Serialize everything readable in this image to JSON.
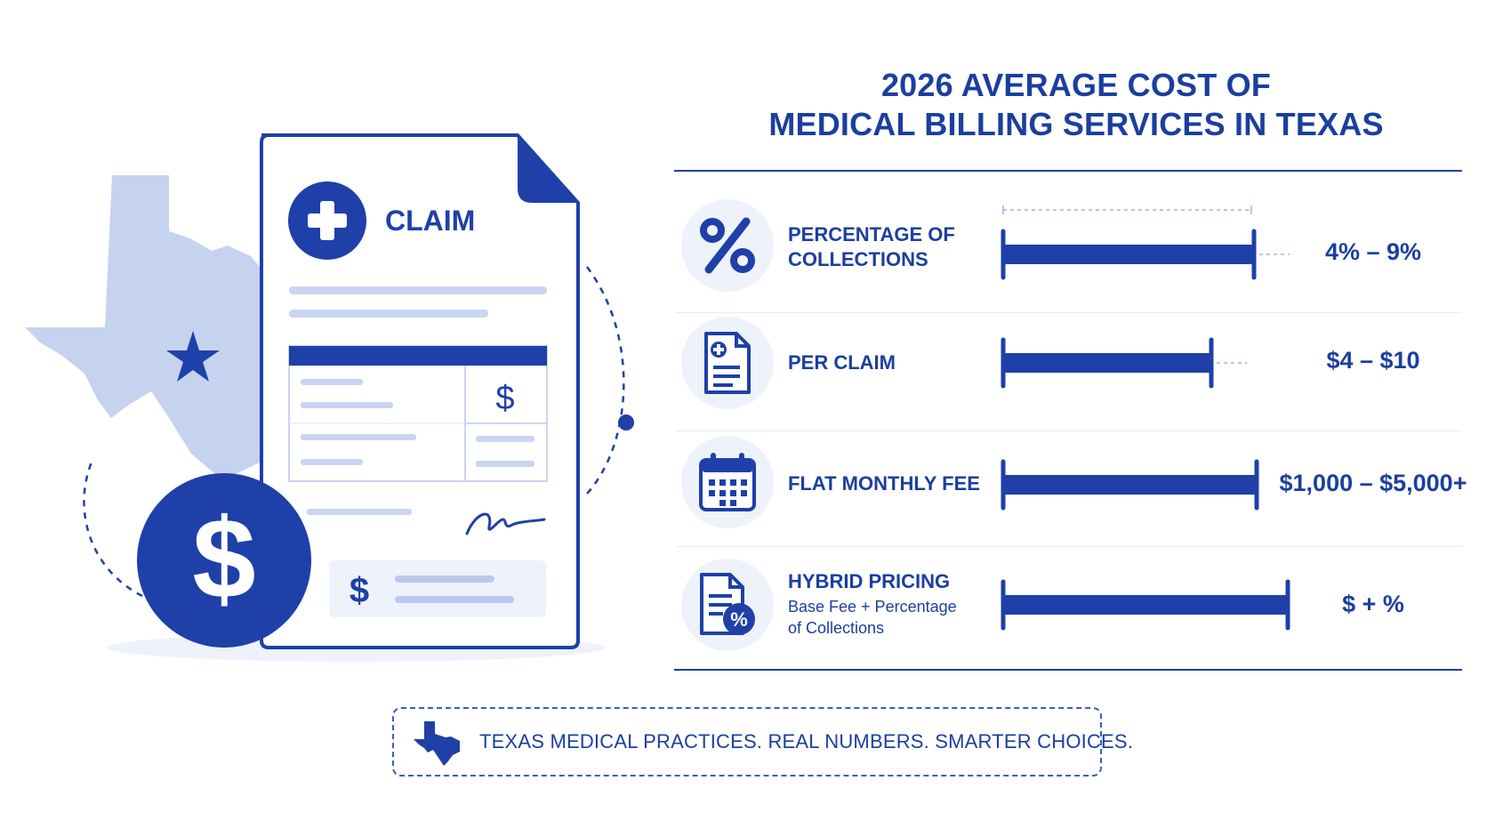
{
  "illustration": {
    "claim_label": "CLAIM",
    "table_currency": "$",
    "footer_currency": "$",
    "coin_symbol": "$"
  },
  "header": {
    "title_line1": "2026 AVERAGE COST OF",
    "title_line2": "MEDICAL BILLING SERVICES IN TEXAS"
  },
  "rows": [
    {
      "icon": "percent-icon",
      "label_line1": "PERCENTAGE OF",
      "label_line2": "COLLECTIONS",
      "value": "4% – 9%",
      "fill": 0.88
    },
    {
      "icon": "claim-document-icon",
      "label_line1": "PER CLAIM",
      "value": "$4 – $10",
      "fill": 0.73
    },
    {
      "icon": "calendar-icon",
      "label_line1": "FLAT MONTHLY FEE",
      "value": "$1,000 – $5,000+",
      "fill": 0.89
    },
    {
      "icon": "document-percent-icon",
      "label_line1": "HYBRID PRICING",
      "sublabel_line1": "Base Fee + Percentage",
      "sublabel_line2": "of Collections",
      "value": "$ + %",
      "fill": 1.0
    }
  ],
  "footer": {
    "icon": "texas-map-icon",
    "text": "TEXAS MEDICAL PRACTICES. REAL NUMBERS. SMARTER CHOICES."
  },
  "colors": {
    "primary": "#1b3f9e",
    "light": "#c6d3f0",
    "background": "#ffffff"
  }
}
